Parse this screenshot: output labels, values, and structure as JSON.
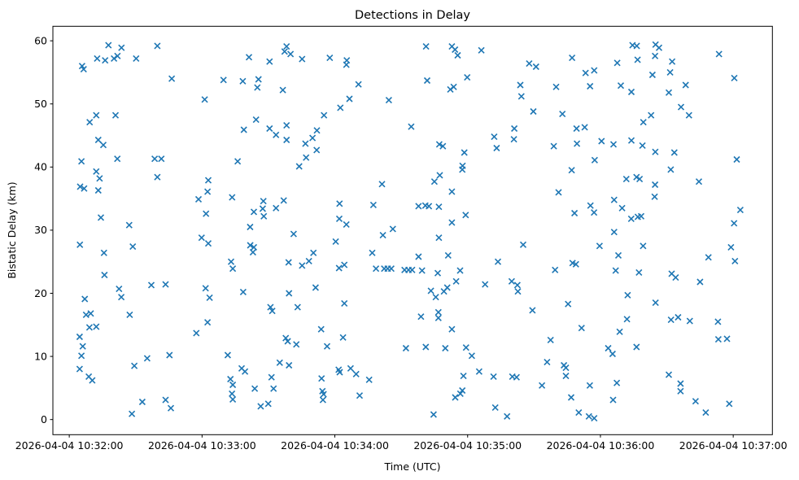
{
  "chart_data": {
    "type": "scatter",
    "title": "Detections in Delay",
    "xlabel": "Time (UTC)",
    "ylabel": "Bistatic Delay (km)",
    "grid": false,
    "legend": null,
    "marker": {
      "style": "x",
      "color": "#1f77b4",
      "size": 7
    },
    "x_unit": "seconds after 2026-04-04 10:32:00 UTC",
    "x_ticks": {
      "seconds": [
        0,
        60,
        120,
        180,
        240,
        300
      ],
      "labels": [
        "2026-04-04 10:32:00",
        "2026-04-04 10:33:00",
        "2026-04-04 10:34:00",
        "2026-04-04 10:35:00",
        "2026-04-04 10:36:00",
        "2026-04-04 10:37:00"
      ]
    },
    "y_ticks": [
      0,
      10,
      20,
      30,
      40,
      50,
      60
    ],
    "xlim_seconds": [
      -7.4,
      317.7
    ],
    "ylim": [
      -2.4,
      62.3
    ],
    "points": [
      [
        17.7,
        59.3
      ],
      [
        23.6,
        58.9
      ],
      [
        39.8,
        59.2
      ],
      [
        12.6,
        57.2
      ],
      [
        16.2,
        56.9
      ],
      [
        20.2,
        57.2
      ],
      [
        21.8,
        57.6
      ],
      [
        30.2,
        57.2
      ],
      [
        5.8,
        56.0
      ],
      [
        6.5,
        55.5
      ],
      [
        46.3,
        54.0
      ],
      [
        69.7,
        53.8
      ],
      [
        61.2,
        50.7
      ],
      [
        12.2,
        48.2
      ],
      [
        20.9,
        48.2
      ],
      [
        9.2,
        47.1
      ],
      [
        13.1,
        44.3
      ],
      [
        15.4,
        43.5
      ],
      [
        5.5,
        40.9
      ],
      [
        21.7,
        41.3
      ],
      [
        38.6,
        41.3
      ],
      [
        41.6,
        41.3
      ],
      [
        98.2,
        59.1
      ],
      [
        97.3,
        58.3
      ],
      [
        100.0,
        57.9
      ],
      [
        81.2,
        57.4
      ],
      [
        90.5,
        56.7
      ],
      [
        105.2,
        57.1
      ],
      [
        117.7,
        57.3
      ],
      [
        125.4,
        56.9
      ],
      [
        125.2,
        56.2
      ],
      [
        78.4,
        53.6
      ],
      [
        85.5,
        53.9
      ],
      [
        85.0,
        52.6
      ],
      [
        96.5,
        52.2
      ],
      [
        130.7,
        53.1
      ],
      [
        126.6,
        50.8
      ],
      [
        144.4,
        50.6
      ],
      [
        122.5,
        49.4
      ],
      [
        115.1,
        48.2
      ],
      [
        84.4,
        47.5
      ],
      [
        78.9,
        45.9
      ],
      [
        90.5,
        46.1
      ],
      [
        93.4,
        45.1
      ],
      [
        98.2,
        46.6
      ],
      [
        98.2,
        44.3
      ],
      [
        111.9,
        45.8
      ],
      [
        109.9,
        44.6
      ],
      [
        106.7,
        43.7
      ],
      [
        111.8,
        42.7
      ],
      [
        107.0,
        41.5
      ],
      [
        154.5,
        46.4
      ],
      [
        76.1,
        40.9
      ],
      [
        161.2,
        59.1
      ],
      [
        172.9,
        59.1
      ],
      [
        174.3,
        58.6
      ],
      [
        175.5,
        57.7
      ],
      [
        186.2,
        58.5
      ],
      [
        227.2,
        57.3
      ],
      [
        207.8,
        56.4
      ],
      [
        210.9,
        55.9
      ],
      [
        233.3,
        54.9
      ],
      [
        161.7,
        53.7
      ],
      [
        179.8,
        54.2
      ],
      [
        172.2,
        52.3
      ],
      [
        173.7,
        52.7
      ],
      [
        203.8,
        53.0
      ],
      [
        220.0,
        52.7
      ],
      [
        235.3,
        52.8
      ],
      [
        204.3,
        51.2
      ],
      [
        209.7,
        48.8
      ],
      [
        222.8,
        48.4
      ],
      [
        167.2,
        43.6
      ],
      [
        168.8,
        43.3
      ],
      [
        178.5,
        42.3
      ],
      [
        192.0,
        44.8
      ],
      [
        193.1,
        43.0
      ],
      [
        201.1,
        46.1
      ],
      [
        200.9,
        44.4
      ],
      [
        218.9,
        43.3
      ],
      [
        229.4,
        43.7
      ],
      [
        229.2,
        46.1
      ],
      [
        232.9,
        46.3
      ],
      [
        254.5,
        59.3
      ],
      [
        256.4,
        59.2
      ],
      [
        264.9,
        59.4
      ],
      [
        266.5,
        58.9
      ],
      [
        264.7,
        57.6
      ],
      [
        256.8,
        57.0
      ],
      [
        247.6,
        56.5
      ],
      [
        237.2,
        55.3
      ],
      [
        272.4,
        56.7
      ],
      [
        293.6,
        57.9
      ],
      [
        263.5,
        54.6
      ],
      [
        271.5,
        55.0
      ],
      [
        300.5,
        54.1
      ],
      [
        249.2,
        52.9
      ],
      [
        254.0,
        51.9
      ],
      [
        278.5,
        53.0
      ],
      [
        270.9,
        51.8
      ],
      [
        276.4,
        49.5
      ],
      [
        280.0,
        48.2
      ],
      [
        262.9,
        48.2
      ],
      [
        259.4,
        47.1
      ],
      [
        240.5,
        44.1
      ],
      [
        245.9,
        43.6
      ],
      [
        254.0,
        44.2
      ],
      [
        259.0,
        43.4
      ],
      [
        264.8,
        42.4
      ],
      [
        273.4,
        42.3
      ],
      [
        237.4,
        41.1
      ],
      [
        301.6,
        41.2
      ],
      [
        12.2,
        39.3
      ],
      [
        13.7,
        38.2
      ],
      [
        4.9,
        36.9
      ],
      [
        6.7,
        36.6
      ],
      [
        13.1,
        36.3
      ],
      [
        39.8,
        38.4
      ],
      [
        62.8,
        37.9
      ],
      [
        62.5,
        36.1
      ],
      [
        58.4,
        34.9
      ],
      [
        73.6,
        35.2
      ],
      [
        61.8,
        32.6
      ],
      [
        14.3,
        32.0
      ],
      [
        27.1,
        30.8
      ],
      [
        59.8,
        28.8
      ],
      [
        62.8,
        27.9
      ],
      [
        4.8,
        27.7
      ],
      [
        15.7,
        26.4
      ],
      [
        28.7,
        27.4
      ],
      [
        15.9,
        22.9
      ],
      [
        22.5,
        20.7
      ],
      [
        23.5,
        19.4
      ],
      [
        37.1,
        21.3
      ],
      [
        43.5,
        21.4
      ],
      [
        7.0,
        19.1
      ],
      [
        61.6,
        20.8
      ],
      [
        63.4,
        19.3
      ],
      [
        103.9,
        40.1
      ],
      [
        141.3,
        37.3
      ],
      [
        87.7,
        34.6
      ],
      [
        96.9,
        34.7
      ],
      [
        93.4,
        33.5
      ],
      [
        83.4,
        32.9
      ],
      [
        87.4,
        33.4
      ],
      [
        87.9,
        32.2
      ],
      [
        81.7,
        30.5
      ],
      [
        122.1,
        34.2
      ],
      [
        137.4,
        34.0
      ],
      [
        122.0,
        31.8
      ],
      [
        125.2,
        30.9
      ],
      [
        141.7,
        29.2
      ],
      [
        146.2,
        30.2
      ],
      [
        101.4,
        29.4
      ],
      [
        120.4,
        28.2
      ],
      [
        136.9,
        26.4
      ],
      [
        81.8,
        27.6
      ],
      [
        83.4,
        27.3
      ],
      [
        83.0,
        26.5
      ],
      [
        73.1,
        25.0
      ],
      [
        73.9,
        23.9
      ],
      [
        99.1,
        24.9
      ],
      [
        105.2,
        24.4
      ],
      [
        108.3,
        25.1
      ],
      [
        110.3,
        26.4
      ],
      [
        121.9,
        24.0
      ],
      [
        124.3,
        24.5
      ],
      [
        138.6,
        23.9
      ],
      [
        142.3,
        23.9
      ],
      [
        143.9,
        23.9
      ],
      [
        145.5,
        23.9
      ],
      [
        151.5,
        23.7
      ],
      [
        153.3,
        23.7
      ],
      [
        154.9,
        23.7
      ],
      [
        78.6,
        20.2
      ],
      [
        99.3,
        20.0
      ],
      [
        111.3,
        20.9
      ],
      [
        124.3,
        18.4
      ],
      [
        177.7,
        40.2
      ],
      [
        177.6,
        39.6
      ],
      [
        167.4,
        38.7
      ],
      [
        165.0,
        37.7
      ],
      [
        172.9,
        36.1
      ],
      [
        157.8,
        33.8
      ],
      [
        160.9,
        33.9
      ],
      [
        162.5,
        33.8
      ],
      [
        167.0,
        33.7
      ],
      [
        179.1,
        32.4
      ],
      [
        172.9,
        31.2
      ],
      [
        167.0,
        28.8
      ],
      [
        205.1,
        27.7
      ],
      [
        157.8,
        25.8
      ],
      [
        171.2,
        26.0
      ],
      [
        159.4,
        23.6
      ],
      [
        166.5,
        23.2
      ],
      [
        176.6,
        23.6
      ],
      [
        193.7,
        25.0
      ],
      [
        174.8,
        21.9
      ],
      [
        187.9,
        21.4
      ],
      [
        199.9,
        21.9
      ],
      [
        202.5,
        21.3
      ],
      [
        202.7,
        20.3
      ],
      [
        163.4,
        20.4
      ],
      [
        165.6,
        19.4
      ],
      [
        169.3,
        20.3
      ],
      [
        170.8,
        20.9
      ],
      [
        219.5,
        23.7
      ],
      [
        227.4,
        24.8
      ],
      [
        228.9,
        24.6
      ],
      [
        221.1,
        36.0
      ],
      [
        227.0,
        39.5
      ],
      [
        228.3,
        32.7
      ],
      [
        235.5,
        33.9
      ],
      [
        271.8,
        39.6
      ],
      [
        251.7,
        38.1
      ],
      [
        256.3,
        38.4
      ],
      [
        257.7,
        38.1
      ],
      [
        264.7,
        37.2
      ],
      [
        284.5,
        37.7
      ],
      [
        264.5,
        35.3
      ],
      [
        246.2,
        34.8
      ],
      [
        249.8,
        33.5
      ],
      [
        237.1,
        32.8
      ],
      [
        253.9,
        31.8
      ],
      [
        256.9,
        32.1
      ],
      [
        258.4,
        32.2
      ],
      [
        303.2,
        33.2
      ],
      [
        300.4,
        31.1
      ],
      [
        246.2,
        29.7
      ],
      [
        239.6,
        27.5
      ],
      [
        259.3,
        27.5
      ],
      [
        248.1,
        26.0
      ],
      [
        299.0,
        27.3
      ],
      [
        288.8,
        25.7
      ],
      [
        300.8,
        25.1
      ],
      [
        246.9,
        23.6
      ],
      [
        257.4,
        23.3
      ],
      [
        272.2,
        23.1
      ],
      [
        274.0,
        22.5
      ],
      [
        285.0,
        21.8
      ],
      [
        252.3,
        19.7
      ],
      [
        264.9,
        18.5
      ],
      [
        7.6,
        16.6
      ],
      [
        9.7,
        16.8
      ],
      [
        9.1,
        14.6
      ],
      [
        12.2,
        14.7
      ],
      [
        4.7,
        13.1
      ],
      [
        6.1,
        11.6
      ],
      [
        5.5,
        10.1
      ],
      [
        4.7,
        8.0
      ],
      [
        8.8,
        6.8
      ],
      [
        10.4,
        6.2
      ],
      [
        27.3,
        16.6
      ],
      [
        29.4,
        8.5
      ],
      [
        35.2,
        9.7
      ],
      [
        45.3,
        10.2
      ],
      [
        33.0,
        2.8
      ],
      [
        28.3,
        0.9
      ],
      [
        43.5,
        3.1
      ],
      [
        45.9,
        1.8
      ],
      [
        57.4,
        13.7
      ],
      [
        62.5,
        15.4
      ],
      [
        71.6,
        10.2
      ],
      [
        90.9,
        17.8
      ],
      [
        91.7,
        17.2
      ],
      [
        103.2,
        17.8
      ],
      [
        113.8,
        14.3
      ],
      [
        123.7,
        13.0
      ],
      [
        97.8,
        12.9
      ],
      [
        98.7,
        12.4
      ],
      [
        102.6,
        11.9
      ],
      [
        116.5,
        11.6
      ],
      [
        152.1,
        11.3
      ],
      [
        95.1,
        9.0
      ],
      [
        99.3,
        8.6
      ],
      [
        77.9,
        8.1
      ],
      [
        79.4,
        7.6
      ],
      [
        91.4,
        6.7
      ],
      [
        83.8,
        4.9
      ],
      [
        92.3,
        4.9
      ],
      [
        86.5,
        2.1
      ],
      [
        89.9,
        2.5
      ],
      [
        114.0,
        6.5
      ],
      [
        121.7,
        7.9
      ],
      [
        122.2,
        7.5
      ],
      [
        127.1,
        8.1
      ],
      [
        129.6,
        7.2
      ],
      [
        135.5,
        6.3
      ],
      [
        114.4,
        4.5
      ],
      [
        114.9,
        4.0
      ],
      [
        114.6,
        3.1
      ],
      [
        131.2,
        3.8
      ],
      [
        72.8,
        6.4
      ],
      [
        73.9,
        5.5
      ],
      [
        73.5,
        4.1
      ],
      [
        73.9,
        3.2
      ],
      [
        158.9,
        16.3
      ],
      [
        166.8,
        17.0
      ],
      [
        166.8,
        16.1
      ],
      [
        172.9,
        14.3
      ],
      [
        161.1,
        11.5
      ],
      [
        169.9,
        11.3
      ],
      [
        179.3,
        11.4
      ],
      [
        181.9,
        10.1
      ],
      [
        185.2,
        7.6
      ],
      [
        178.1,
        6.9
      ],
      [
        191.7,
        6.8
      ],
      [
        200.2,
        6.8
      ],
      [
        202.1,
        6.7
      ],
      [
        174.4,
        3.5
      ],
      [
        176.7,
        4.1
      ],
      [
        177.6,
        4.6
      ],
      [
        164.6,
        0.8
      ],
      [
        192.5,
        1.9
      ],
      [
        197.8,
        0.5
      ],
      [
        209.3,
        17.3
      ],
      [
        225.4,
        18.3
      ],
      [
        231.5,
        14.5
      ],
      [
        217.5,
        12.6
      ],
      [
        215.9,
        9.1
      ],
      [
        223.5,
        8.6
      ],
      [
        224.4,
        8.2
      ],
      [
        224.4,
        6.9
      ],
      [
        213.6,
        5.4
      ],
      [
        235.2,
        5.4
      ],
      [
        226.8,
        3.5
      ],
      [
        230.2,
        1.1
      ],
      [
        234.8,
        0.5
      ],
      [
        252.0,
        15.9
      ],
      [
        248.7,
        13.9
      ],
      [
        243.5,
        11.3
      ],
      [
        245.5,
        10.4
      ],
      [
        256.3,
        11.5
      ],
      [
        271.9,
        15.8
      ],
      [
        275.1,
        16.2
      ],
      [
        280.4,
        15.6
      ],
      [
        293.1,
        15.5
      ],
      [
        293.3,
        12.7
      ],
      [
        297.2,
        12.8
      ],
      [
        270.9,
        7.1
      ],
      [
        276.2,
        5.7
      ],
      [
        276.2,
        4.5
      ],
      [
        247.4,
        5.8
      ],
      [
        245.7,
        3.1
      ],
      [
        283.0,
        2.9
      ],
      [
        287.6,
        1.1
      ],
      [
        298.2,
        2.5
      ],
      [
        237.2,
        0.2
      ]
    ]
  }
}
